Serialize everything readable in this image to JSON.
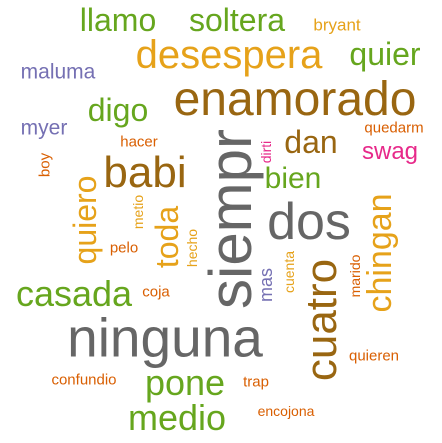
{
  "words": [
    {
      "text": "ninguna",
      "color": "#666666"
    },
    {
      "text": "siempr",
      "color": "#666666"
    },
    {
      "text": "dos",
      "color": "#666666"
    },
    {
      "text": "enamorado",
      "color": "#996611"
    },
    {
      "text": "cuatro",
      "color": "#996611"
    },
    {
      "text": "babi",
      "color": "#996611"
    },
    {
      "text": "desespera",
      "color": "#e6a21a"
    },
    {
      "text": "chingan",
      "color": "#e6a21a"
    },
    {
      "text": "casada",
      "color": "#66a61e"
    },
    {
      "text": "pone",
      "color": "#66a61e"
    },
    {
      "text": "medio",
      "color": "#66a61e"
    },
    {
      "text": "quiero",
      "color": "#e6a21a"
    },
    {
      "text": "toda",
      "color": "#e6a21a"
    },
    {
      "text": "digo",
      "color": "#66a61e"
    },
    {
      "text": "bien",
      "color": "#66a61e"
    },
    {
      "text": "dan",
      "color": "#996611"
    },
    {
      "text": "quier",
      "color": "#66a61e"
    },
    {
      "text": "llamo",
      "color": "#66a61e"
    },
    {
      "text": "soltera",
      "color": "#66a61e"
    },
    {
      "text": "swag",
      "color": "#e7298a"
    },
    {
      "text": "maluma",
      "color": "#7570b3"
    },
    {
      "text": "myer",
      "color": "#7570b3"
    },
    {
      "text": "bryant",
      "color": "#e6a21a"
    },
    {
      "text": "quedarm",
      "color": "#d95f02"
    },
    {
      "text": "hacer",
      "color": "#d95f02"
    },
    {
      "text": "boy",
      "color": "#d95f02"
    },
    {
      "text": "metio",
      "color": "#e6a21a"
    },
    {
      "text": "pelo",
      "color": "#d95f02"
    },
    {
      "text": "hecho",
      "color": "#e6a21a"
    },
    {
      "text": "coja",
      "color": "#d95f02"
    },
    {
      "text": "mas",
      "color": "#7570b3"
    },
    {
      "text": "cuenta",
      "color": "#e6a21a"
    },
    {
      "text": "dirti",
      "color": "#e7298a"
    },
    {
      "text": "marido",
      "color": "#d95f02"
    },
    {
      "text": "quieren",
      "color": "#d95f02"
    },
    {
      "text": "confundio",
      "color": "#d95f02"
    },
    {
      "text": "trap",
      "color": "#d95f02"
    },
    {
      "text": "encojona",
      "color": "#d95f02"
    }
  ]
}
